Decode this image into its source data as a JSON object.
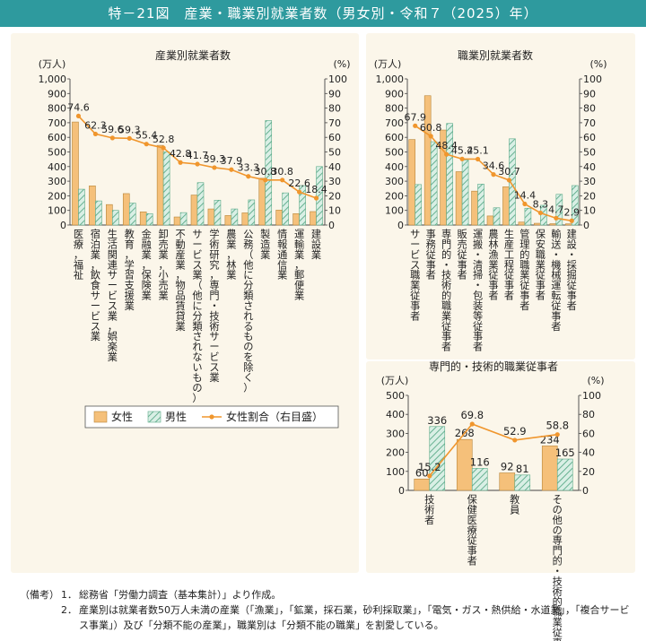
{
  "header": {
    "title": "特－21図　産業・職業別就業者数（男女別・令和７（2025）年）"
  },
  "colors": {
    "female": "#f5c07a",
    "male_fill": "#d9efe5",
    "male_stripe": "#5aaa88",
    "ratio": "#f0962d",
    "panel": "#fbf6ea",
    "header": "#2e9a9e"
  },
  "legend": {
    "female": "女性",
    "male": "男性",
    "ratio": "女性割合（右目盛）"
  },
  "chart_data": [
    {
      "type": "bar",
      "title": "産業別就業者数",
      "ylabel_left": "(万人)",
      "ylabel_right": "(%)",
      "ylim_left": [
        0,
        1000
      ],
      "ylim_right": [
        0,
        100
      ],
      "yticks_left": [
        "0",
        "100",
        "200",
        "300",
        "400",
        "500",
        "600",
        "700",
        "800",
        "900",
        "1,000"
      ],
      "yticks_right": [
        "0",
        "10",
        "20",
        "30",
        "40",
        "50",
        "60",
        "70",
        "80",
        "90",
        "100"
      ],
      "categories": [
        "医療，福祉",
        "宿泊業，飲食サービス業",
        "生活関連サービス業，娯楽業",
        "教育，学習支援業",
        "金融業，保険業",
        "卸売業，小売業",
        "不動産業，物品賃貸業",
        "サービス業（他に分類されないもの）",
        "学術研究，専門・技術サービス業",
        "農業，林業",
        "公務（他に分類されるものを除く）",
        "製造業",
        "情報通信業",
        "運輸業，郵便業",
        "建設業"
      ],
      "series": [
        {
          "name": "女性",
          "values": [
            705,
            268,
            140,
            215,
            90,
            545,
            55,
            205,
            110,
            65,
            83,
            320,
            102,
            78,
            92
          ]
        },
        {
          "name": "男性",
          "values": [
            245,
            165,
            100,
            150,
            78,
            500,
            85,
            290,
            170,
            110,
            172,
            715,
            220,
            270,
            400
          ]
        },
        {
          "name": "女性割合",
          "values": [
            74.6,
            62.3,
            59.6,
            59.3,
            55.4,
            52.8,
            42.8,
            41.7,
            39.3,
            37.9,
            33.3,
            30.8,
            30.8,
            22.6,
            18.4
          ],
          "labels": [
            "74.6",
            "62.3",
            "59.6",
            "59.3",
            "55.4",
            "52.8",
            "42.8",
            "41.7",
            "39.3",
            "37.9",
            "33.3",
            "30.8",
            "30.8",
            "22.6",
            "18.4"
          ]
        }
      ]
    },
    {
      "type": "bar",
      "title": "職業別就業者数",
      "ylabel_left": "(万人)",
      "ylabel_right": "(%)",
      "ylim_left": [
        0,
        1000
      ],
      "ylim_right": [
        0,
        100
      ],
      "yticks_left": [
        "0",
        "100",
        "200",
        "300",
        "400",
        "500",
        "600",
        "700",
        "800",
        "900",
        "1,000"
      ],
      "yticks_right": [
        "0",
        "10",
        "20",
        "30",
        "40",
        "50",
        "60",
        "70",
        "80",
        "90",
        "100"
      ],
      "categories": [
        "サービス職業従事者",
        "事務従事者",
        "専門的・技術的職業従事者",
        "販売従事者",
        "運搬・清掃・包装等従事者",
        "農林漁業従事者",
        "生産工程従事者",
        "管理的職業従事者",
        "保安職業従事者",
        "輸送・機械運転従事者",
        "建設・採掘従事者"
      ],
      "series": [
        {
          "name": "女性",
          "values": [
            585,
            885,
            650,
            365,
            232,
            62,
            262,
            20,
            12,
            9,
            8
          ]
        },
        {
          "name": "男性",
          "values": [
            277,
            570,
            695,
            445,
            280,
            118,
            590,
            115,
            135,
            210,
            270
          ]
        },
        {
          "name": "女性割合",
          "values": [
            67.9,
            60.8,
            48.4,
            45.2,
            45.1,
            34.6,
            30.7,
            14.4,
            8.3,
            4.7,
            2.9
          ],
          "labels": [
            "67.9",
            "60.8",
            "48.4",
            "45.2",
            "45.1",
            "34.6",
            "30.7",
            "14.4",
            "8.3",
            "4.7",
            "2.9"
          ]
        }
      ]
    },
    {
      "type": "bar",
      "title": "専門的・技術的職業従事者",
      "ylabel_left": "(万人)",
      "ylabel_right": "(%)",
      "ylim_left": [
        0,
        500
      ],
      "ylim_right": [
        0,
        100
      ],
      "yticks_left": [
        "0",
        "100",
        "200",
        "300",
        "400",
        "500"
      ],
      "yticks_right": [
        "0",
        "20",
        "40",
        "60",
        "80",
        "100"
      ],
      "categories": [
        "技術者",
        "保健医療従事者",
        "教員",
        "その他の専門的・技術的職業従事者"
      ],
      "series": [
        {
          "name": "女性",
          "values": [
            60,
            268,
            92,
            234
          ],
          "labels": [
            "60",
            "268",
            "92",
            "234"
          ]
        },
        {
          "name": "男性",
          "values": [
            336,
            116,
            81,
            165
          ],
          "labels": [
            "336",
            "116",
            "81",
            "165"
          ]
        },
        {
          "name": "女性割合",
          "values": [
            15.2,
            69.8,
            52.9,
            58.8
          ],
          "labels": [
            "15.2",
            "69.8",
            "52.9",
            "58.8"
          ]
        }
      ]
    }
  ],
  "notes": {
    "label": "（備考）",
    "items": [
      {
        "num": "1．",
        "text": "総務省「労働力調査（基本集計）」より作成。"
      },
      {
        "num": "2．",
        "text": "産業別は就業者数50万人未満の産業（「漁業」，「鉱業，採石業，砂利採取業」，「電気・ガス・熱供給・水道業」，「複合サービス事業」）及び「分類不能の産業」，職業別は「分類不能の職業」を割愛している。"
      }
    ]
  }
}
